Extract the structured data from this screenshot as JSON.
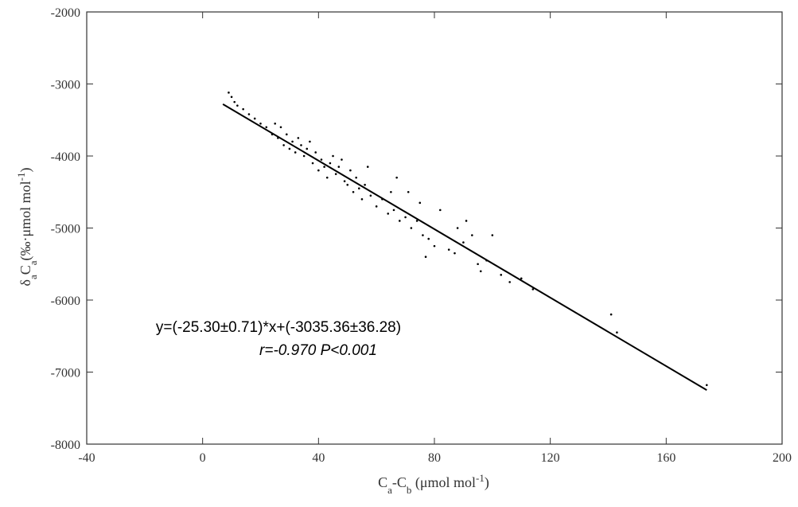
{
  "chart_data": {
    "type": "scatter",
    "xlabel": [
      "C",
      "a",
      "-C",
      "b",
      " (μmol mol",
      "-1",
      ")"
    ],
    "ylabel": [
      "δ",
      "a",
      "C",
      "a",
      "(‰·μmol mol",
      "-1",
      ")"
    ],
    "annotations": [
      "y=(-25.30±0.71)*x+(-3035.36±36.28)",
      "r=-0.970 P<0.001"
    ],
    "xlim": [
      -40,
      200
    ],
    "xticks": [
      -40,
      0,
      40,
      80,
      120,
      160,
      200
    ],
    "ylim": [
      -8000,
      -2000
    ],
    "yticks": [
      -8000,
      -7000,
      -6000,
      -5000,
      -4000,
      -3000,
      -2000
    ],
    "series": [
      {
        "color": "#000000",
        "x": [
          9,
          10,
          11,
          12,
          14,
          16,
          18,
          20,
          22,
          24,
          25,
          26,
          27,
          28,
          29,
          30,
          31,
          32,
          33,
          34,
          35,
          36,
          37,
          38,
          39,
          40,
          41,
          42,
          43,
          44,
          45,
          46,
          47,
          48,
          49,
          50,
          51,
          52,
          53,
          54,
          55,
          56,
          57,
          58,
          60,
          62,
          64,
          65,
          66,
          67,
          68,
          70,
          71,
          72,
          74,
          75,
          76,
          77,
          78,
          80,
          82,
          85,
          87,
          88,
          90,
          91,
          93,
          95,
          96,
          98,
          100,
          103,
          106,
          110,
          114,
          141,
          143,
          174
        ],
        "values": [
          -3120,
          -3180,
          -3250,
          -3300,
          -3350,
          -3420,
          -3480,
          -3550,
          -3600,
          -3700,
          -3550,
          -3750,
          -3600,
          -3850,
          -3700,
          -3900,
          -3800,
          -3950,
          -3750,
          -3850,
          -4000,
          -3900,
          -3800,
          -4100,
          -3950,
          -4200,
          -4050,
          -4150,
          -4300,
          -4100,
          -4000,
          -4250,
          -4150,
          -4050,
          -4350,
          -4400,
          -4200,
          -4500,
          -4300,
          -4450,
          -4600,
          -4400,
          -4150,
          -4550,
          -4700,
          -4600,
          -4800,
          -4500,
          -4750,
          -4300,
          -4900,
          -4850,
          -4500,
          -5000,
          -4900,
          -4650,
          -5100,
          -5400,
          -5150,
          -5250,
          -4750,
          -5300,
          -5350,
          -5000,
          -5200,
          -4900,
          -5100,
          -5500,
          -5600,
          -5450,
          -5100,
          -5650,
          -5750,
          -5700,
          -5850,
          -6200,
          -6450,
          -7180
        ]
      },
      {
        "type": "line",
        "color": "#000000",
        "x": [
          7,
          174
        ],
        "values": [
          -3280,
          -7250
        ]
      }
    ]
  }
}
